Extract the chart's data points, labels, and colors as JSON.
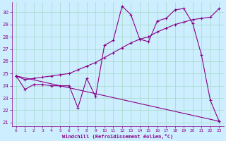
{
  "xlabel": "Windchill (Refroidissement éolien,°C)",
  "bg_color": "#cceeff",
  "grid_color": "#aaddcc",
  "line_color": "#880088",
  "xlim_min": -0.5,
  "xlim_max": 23.5,
  "ylim_min": 20.7,
  "ylim_max": 30.8,
  "yticks": [
    21,
    22,
    23,
    24,
    25,
    26,
    27,
    28,
    29,
    30
  ],
  "xticks": [
    0,
    1,
    2,
    3,
    4,
    5,
    6,
    7,
    8,
    9,
    10,
    11,
    12,
    13,
    14,
    15,
    16,
    17,
    18,
    19,
    20,
    21,
    22,
    23
  ],
  "line1_x": [
    0,
    1,
    2,
    3,
    4,
    5,
    6,
    7,
    8,
    9,
    10,
    11,
    12,
    13,
    14,
    15,
    16,
    17,
    18,
    19,
    20,
    21,
    22,
    23
  ],
  "line1_y": [
    24.8,
    23.7,
    24.1,
    24.1,
    24.0,
    24.0,
    24.0,
    22.2,
    24.6,
    23.1,
    27.3,
    27.7,
    30.5,
    29.8,
    27.8,
    27.6,
    29.3,
    29.5,
    30.2,
    30.3,
    29.1,
    26.5,
    22.8,
    21.1
  ],
  "line2_x": [
    0,
    1,
    2,
    3,
    4,
    5,
    6,
    7,
    8,
    9,
    10,
    11,
    12,
    13,
    14,
    15,
    16,
    17,
    18,
    19,
    20,
    21,
    22,
    23
  ],
  "line2_y": [
    24.8,
    24.5,
    24.6,
    24.7,
    24.8,
    24.9,
    25.0,
    25.3,
    25.6,
    25.9,
    26.3,
    26.7,
    27.1,
    27.5,
    27.8,
    28.0,
    28.4,
    28.7,
    29.0,
    29.2,
    29.4,
    29.5,
    29.6,
    30.3
  ],
  "line3_x": [
    0,
    23
  ],
  "line3_y": [
    24.8,
    21.1
  ]
}
